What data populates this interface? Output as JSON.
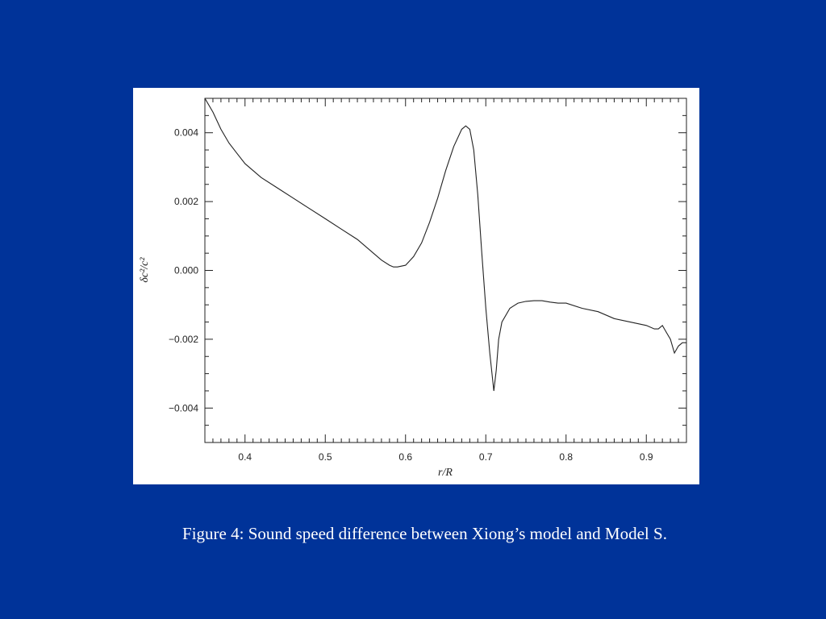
{
  "colors": {
    "background": "#003399",
    "panel": "#ffffff",
    "caption_text": "#ffffff",
    "line": "#222222"
  },
  "caption": "Figure 4: Sound speed difference between Xiong’s model and Model S.",
  "chart_data": {
    "type": "line",
    "title": "",
    "xlabel": "r/R",
    "ylabel": "δc²/c²",
    "xlim": [
      0.35,
      0.95
    ],
    "ylim": [
      -0.005,
      0.005
    ],
    "x_ticks": [
      0.4,
      0.5,
      0.6,
      0.7,
      0.8,
      0.9
    ],
    "x_tick_labels": [
      "0.4",
      "0.5",
      "0.6",
      "0.7",
      "0.8",
      "0.9"
    ],
    "y_ticks": [
      -0.004,
      -0.002,
      0.0,
      0.002,
      0.004
    ],
    "y_tick_labels": [
      "−0.004",
      "−0.002",
      "0.000",
      "0.002",
      "0.004"
    ],
    "grid": false,
    "legend": "none",
    "series": [
      {
        "x": [
          0.35,
          0.36,
          0.37,
          0.38,
          0.39,
          0.4,
          0.42,
          0.44,
          0.46,
          0.48,
          0.5,
          0.52,
          0.54,
          0.56,
          0.57,
          0.58,
          0.585,
          0.59,
          0.6,
          0.61,
          0.62,
          0.63,
          0.64,
          0.65,
          0.66,
          0.67,
          0.675,
          0.68,
          0.685,
          0.69,
          0.695,
          0.7,
          0.705,
          0.71,
          0.713,
          0.716,
          0.72,
          0.73,
          0.74,
          0.75,
          0.76,
          0.77,
          0.78,
          0.79,
          0.8,
          0.82,
          0.84,
          0.86,
          0.88,
          0.9,
          0.91,
          0.915,
          0.92,
          0.925,
          0.93,
          0.935,
          0.94,
          0.945,
          0.95
        ],
        "y": [
          0.005,
          0.0046,
          0.0041,
          0.0037,
          0.0034,
          0.0031,
          0.0027,
          0.0024,
          0.0021,
          0.0018,
          0.0015,
          0.0012,
          0.0009,
          0.0005,
          0.0003,
          0.00015,
          0.0001,
          0.0001,
          0.00015,
          0.0004,
          0.0008,
          0.0014,
          0.0021,
          0.0029,
          0.0036,
          0.0041,
          0.0042,
          0.0041,
          0.0035,
          0.0022,
          0.0005,
          -0.0011,
          -0.0024,
          -0.0035,
          -0.0029,
          -0.002,
          -0.0015,
          -0.0011,
          -0.00095,
          -0.0009,
          -0.00088,
          -0.00088,
          -0.00092,
          -0.00095,
          -0.00095,
          -0.0011,
          -0.0012,
          -0.0014,
          -0.0015,
          -0.0016,
          -0.0017,
          -0.0017,
          -0.0016,
          -0.0018,
          -0.002,
          -0.0024,
          -0.0022,
          -0.0021,
          -0.0021
        ]
      }
    ]
  }
}
